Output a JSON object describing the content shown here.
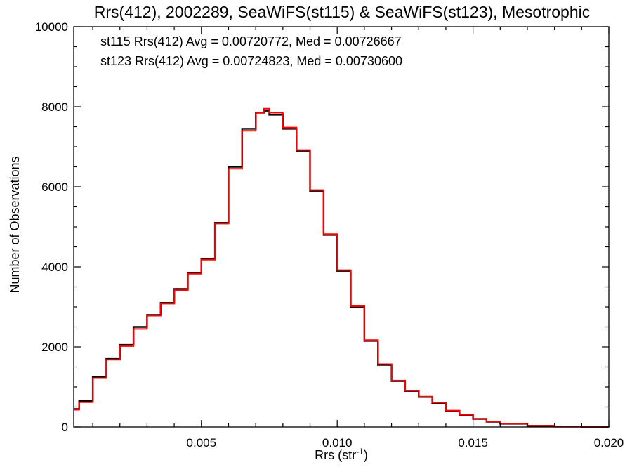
{
  "chart_data": {
    "type": "line",
    "step": true,
    "title": "Rrs(412), 2002289, SeaWiFS(st115) & SeaWiFS(st123), Mesotrophic",
    "xlabel": "Rrs (str",
    "xlabel_sup": "-1",
    "xlabel_end": ")",
    "ylabel": "Number of Observations",
    "xlim": [
      0.0003,
      0.02
    ],
    "ylim": [
      0,
      10000
    ],
    "xticks": [
      0.005,
      0.01,
      0.015,
      0.02
    ],
    "xtick_labels": [
      "0.005",
      "0.010",
      "0.015",
      "0.020"
    ],
    "yticks": [
      0,
      2000,
      4000,
      6000,
      8000,
      10000
    ],
    "ytick_labels": [
      "0",
      "2000",
      "4000",
      "6000",
      "8000",
      "10000"
    ],
    "grid": false,
    "legend_position": "top-left",
    "annotations": [
      {
        "text": "st115 Rrs(412) Avg = 0.00720772, Med = 0.00726667",
        "color": "#000000"
      },
      {
        "text": "st123 Rrs(412) Avg = 0.00724823, Med = 0.00730600",
        "color": "#ff0000"
      }
    ],
    "series": [
      {
        "color": "#000000",
        "x": [
          0.0003,
          0.0005,
          0.001,
          0.0015,
          0.002,
          0.0025,
          0.003,
          0.0035,
          0.004,
          0.0045,
          0.005,
          0.0055,
          0.006,
          0.0065,
          0.007,
          0.0073,
          0.0075,
          0.008,
          0.0085,
          0.009,
          0.0095,
          0.01,
          0.0105,
          0.011,
          0.0115,
          0.012,
          0.0125,
          0.013,
          0.0135,
          0.014,
          0.0145,
          0.015,
          0.0155,
          0.016,
          0.017,
          0.018,
          0.019,
          0.02
        ],
        "y": [
          450,
          650,
          1250,
          1700,
          2050,
          2500,
          2800,
          3100,
          3450,
          3850,
          4200,
          5100,
          6500,
          7450,
          7850,
          7900,
          7800,
          7450,
          6900,
          5900,
          4800,
          3900,
          3000,
          2150,
          1550,
          1150,
          900,
          750,
          600,
          400,
          300,
          200,
          130,
          80,
          30,
          10,
          5,
          0
        ]
      },
      {
        "color": "#ff0000",
        "x": [
          0.0003,
          0.0005,
          0.001,
          0.0015,
          0.002,
          0.0025,
          0.003,
          0.0035,
          0.004,
          0.0045,
          0.005,
          0.0055,
          0.006,
          0.0065,
          0.007,
          0.0073,
          0.0075,
          0.008,
          0.0085,
          0.009,
          0.0095,
          0.01,
          0.0105,
          0.011,
          0.0115,
          0.012,
          0.0125,
          0.013,
          0.0135,
          0.014,
          0.0145,
          0.015,
          0.0155,
          0.016,
          0.017,
          0.018,
          0.019,
          0.02
        ],
        "y": [
          430,
          620,
          1220,
          1680,
          2020,
          2450,
          2780,
          3080,
          3420,
          3830,
          4180,
          5080,
          6450,
          7400,
          7850,
          7950,
          7850,
          7480,
          6920,
          5920,
          4820,
          3920,
          3020,
          2170,
          1570,
          1160,
          910,
          760,
          610,
          410,
          305,
          205,
          135,
          85,
          32,
          12,
          6,
          0
        ]
      }
    ]
  }
}
